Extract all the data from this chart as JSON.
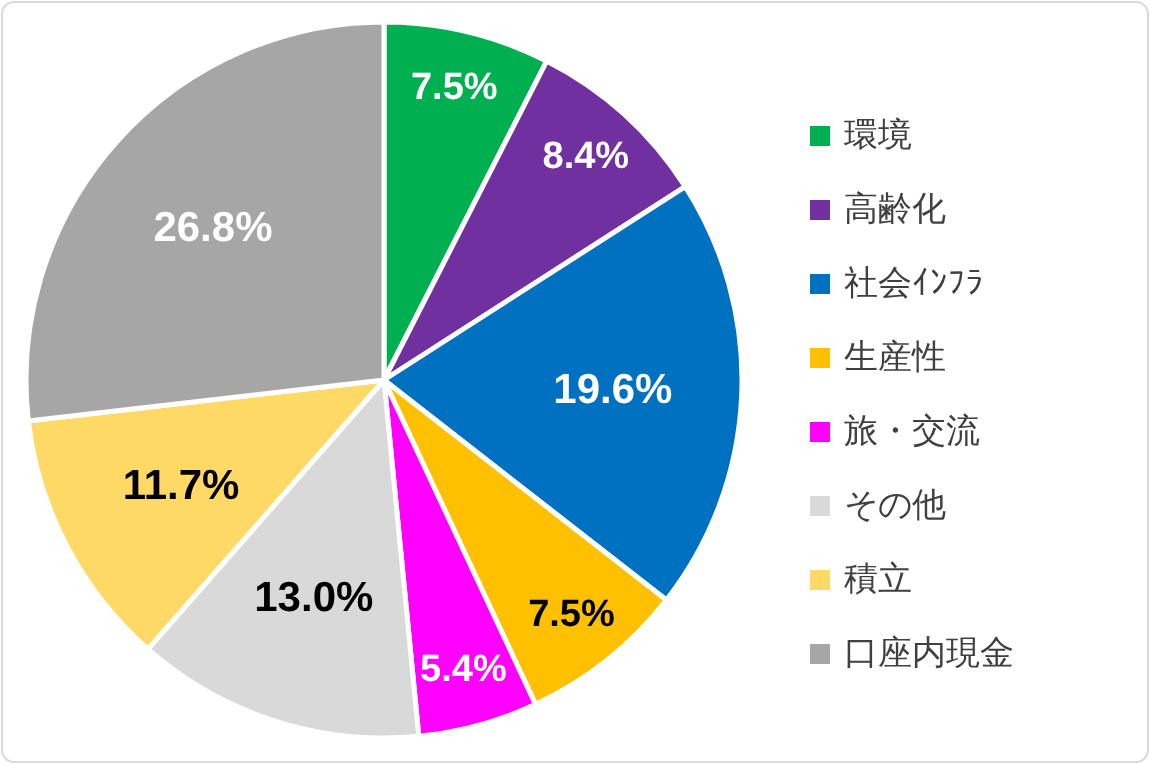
{
  "chart_data": {
    "type": "pie",
    "categories": [
      "環境",
      "高齢化",
      "社会ｲﾝﾌﾗ",
      "生産性",
      "旅・交流",
      "その他",
      "積立",
      "口座内現金"
    ],
    "values": [
      7.5,
      8.4,
      19.6,
      7.5,
      5.4,
      13.0,
      11.7,
      26.8
    ],
    "colors": [
      "#00b050",
      "#7030a0",
      "#0070c0",
      "#ffc000",
      "#ff00ff",
      "#d9d9d9",
      "#ffd966",
      "#a6a6a6"
    ],
    "value_labels": [
      "7.5%",
      "8.4%",
      "19.6%",
      "7.5%",
      "5.4%",
      "13.0%",
      "11.7%",
      "26.8%"
    ],
    "legend": "right"
  }
}
